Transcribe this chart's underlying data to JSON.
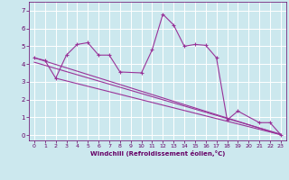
{
  "bg_color": "#cce8ee",
  "grid_color": "#ffffff",
  "line_color": "#993399",
  "xlabel": "Windchill (Refroidissement éolien,°C)",
  "xlabel_color": "#660066",
  "tick_color": "#660066",
  "ylim": [
    -0.3,
    7.5
  ],
  "xlim": [
    -0.5,
    23.5
  ],
  "yticks": [
    0,
    1,
    2,
    3,
    4,
    5,
    6,
    7
  ],
  "xticks": [
    0,
    1,
    2,
    3,
    4,
    5,
    6,
    7,
    8,
    9,
    10,
    11,
    12,
    13,
    14,
    15,
    16,
    17,
    18,
    19,
    20,
    21,
    22,
    23
  ],
  "series1_x": [
    0,
    1,
    2,
    3,
    4,
    5,
    6,
    7,
    8,
    10,
    11,
    12,
    13,
    14,
    15,
    16,
    17,
    18,
    19,
    21,
    22,
    23
  ],
  "series1_y": [
    4.35,
    4.2,
    3.2,
    4.5,
    5.1,
    5.2,
    4.5,
    4.5,
    3.55,
    3.5,
    4.8,
    6.8,
    6.2,
    5.0,
    5.1,
    5.05,
    4.35,
    0.85,
    1.35,
    0.7,
    0.7,
    0.02
  ],
  "line1_x": [
    0,
    23
  ],
  "line1_y": [
    4.35,
    0.02
  ],
  "line2_x": [
    0,
    23
  ],
  "line2_y": [
    4.1,
    0.05
  ],
  "line3_x": [
    2,
    23
  ],
  "line3_y": [
    3.2,
    0.02
  ]
}
